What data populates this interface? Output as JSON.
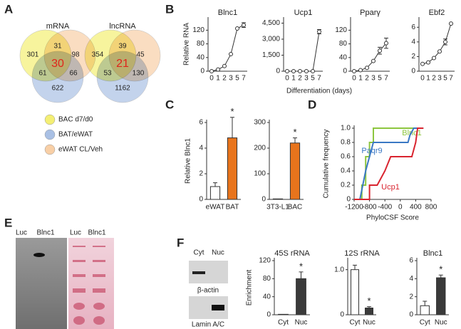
{
  "panel_labels": [
    "A",
    "B",
    "C",
    "D",
    "E",
    "F"
  ],
  "venn": [
    {
      "title": "mRNA",
      "regions": [
        301,
        31,
        98,
        61,
        30,
        66,
        622
      ]
    },
    {
      "title": "lncRNA",
      "regions": [
        354,
        39,
        45,
        53,
        21,
        130,
        1162
      ]
    }
  ],
  "venn_legend": [
    {
      "label": "BAC d7/d0",
      "color": "#f4ef74"
    },
    {
      "label": "BAT/eWAT",
      "color": "#a9c0e4"
    },
    {
      "label": "eWAT CL/Veh",
      "color": "#f8cfa6"
    }
  ],
  "venn_center_color": "#e0241b",
  "blot_e": {
    "labels": [
      "Luc",
      "Blnc1",
      "Luc",
      "Blnc1"
    ]
  },
  "blot_f": {
    "lanes": [
      "Cyt",
      "Nuc"
    ],
    "proteins": [
      "β-actin",
      "Lamin A/C"
    ]
  },
  "chart_data": [
    {
      "type": "line",
      "title": "Blnc1",
      "ylabel": "Relative RNA",
      "xlabel": "Differentiation (days)",
      "categories": [
        "0",
        "1",
        "2",
        "3",
        "5",
        "7"
      ],
      "series": [
        {
          "name": "Blnc1",
          "color": "#333333",
          "values": [
            0,
            5,
            15,
            50,
            125,
            135
          ],
          "errors": [
            null,
            null,
            null,
            null,
            null,
            7
          ]
        }
      ],
      "ylim": [
        0,
        150
      ],
      "yticks": [
        0,
        40,
        80,
        120
      ]
    },
    {
      "type": "line",
      "title": "Ucp1",
      "categories": [
        "0",
        "1",
        "2",
        "3",
        "5",
        "7"
      ],
      "series": [
        {
          "name": "Ucp1",
          "color": "#333333",
          "values": [
            0,
            0,
            0,
            0,
            0,
            3700
          ],
          "errors": [
            null,
            null,
            null,
            null,
            null,
            200
          ]
        }
      ],
      "ylim": [
        0,
        4800
      ],
      "yticks": [
        0,
        {
          "value": 1500,
          "label": "1,500"
        },
        {
          "value": 3000,
          "label": "3,000"
        },
        {
          "value": 4500,
          "label": "4,500"
        }
      ]
    },
    {
      "type": "line",
      "title": "Pparγ",
      "categories": [
        "0",
        "1",
        "2",
        "3",
        "5",
        "7"
      ],
      "series": [
        {
          "name": "Pparγ",
          "color": "#333333",
          "values": [
            0,
            3,
            10,
            30,
            60,
            82
          ],
          "errors": [
            null,
            null,
            null,
            null,
            10,
            15
          ]
        }
      ],
      "ylim": [
        0,
        150
      ],
      "yticks": [
        0,
        40,
        80,
        120
      ]
    },
    {
      "type": "line",
      "title": "Ebf2",
      "categories": [
        "0",
        "1",
        "2",
        "3",
        "5",
        "7"
      ],
      "series": [
        {
          "name": "Ebf2",
          "color": "#333333",
          "values": [
            1,
            1.2,
            1.8,
            2.7,
            4,
            6.5
          ],
          "errors": [
            null,
            null,
            null,
            null,
            0.4,
            null
          ]
        }
      ],
      "ylim": [
        0,
        7
      ],
      "yticks": [
        0,
        2,
        4,
        6
      ]
    },
    {
      "type": "bar",
      "ylabel": "Relative Blnc1",
      "categories": [
        "eWAT",
        "BAT"
      ],
      "values": [
        1,
        4.8
      ],
      "errors": [
        0.3,
        1.6
      ],
      "colors": [
        "#ffffff",
        "#e8741c"
      ],
      "annotations": [
        null,
        "*"
      ],
      "ylim": [
        0,
        6
      ],
      "yticks": [
        0,
        2,
        4,
        6
      ]
    },
    {
      "type": "bar",
      "categories": [
        "3T3-L1",
        "BAC"
      ],
      "values": [
        2,
        220
      ],
      "errors": [
        null,
        20
      ],
      "colors": [
        "#ffffff",
        "#e8741c"
      ],
      "annotations": [
        null,
        "*"
      ],
      "ylim": [
        0,
        300
      ],
      "yticks": [
        0,
        100,
        200,
        300
      ]
    },
    {
      "type": "line",
      "ylabel": "Cumulative frequency",
      "xlabel": "PhyloCSF Score",
      "series": [
        {
          "name": "Blnc1",
          "color": "#8dc63f",
          "x": [
            -1200,
            -1000,
            -1000,
            -900,
            -900,
            -800,
            -800,
            -700,
            -700,
            600
          ],
          "values": [
            0,
            0,
            0.2,
            0.2,
            0.6,
            0.6,
            0.8,
            0.8,
            1,
            1
          ]
        },
        {
          "name": "Paqr9",
          "color": "#3a78c4",
          "x": [
            -1200,
            -1050,
            -900,
            -800,
            -700,
            200,
            250,
            350,
            400,
            600
          ],
          "values": [
            0,
            0,
            0.4,
            0.6,
            0.8,
            0.8,
            0.9,
            1,
            1,
            1
          ]
        },
        {
          "name": "Ucp1",
          "color": "#d9242f",
          "x": [
            -1200,
            -800,
            -800,
            -600,
            -400,
            -250,
            -200,
            300,
            400,
            450,
            600
          ],
          "values": [
            0,
            0,
            0.2,
            0.2,
            0.4,
            0.6,
            0.6,
            0.6,
            0.8,
            1,
            1
          ]
        }
      ],
      "xlim": [
        -1200,
        800
      ],
      "xticks": [
        -1200,
        -800,
        -400,
        0,
        400,
        800
      ],
      "ylim": [
        0,
        1
      ],
      "yticks": [
        0,
        0.2,
        0.4,
        0.6,
        0.8,
        {
          "value": 1,
          "label": "1.0"
        }
      ]
    },
    {
      "type": "bar",
      "title": "45S rRNA",
      "ylabel": "Enrichment",
      "categories": [
        "Cyt",
        "Nuc"
      ],
      "values": [
        1,
        80
      ],
      "errors": [
        null,
        15
      ],
      "colors": [
        "#ffffff",
        "#3a3a3a"
      ],
      "annotations": [
        null,
        "*"
      ],
      "ylim": [
        0,
        120
      ],
      "yticks": [
        0,
        40,
        80,
        120
      ]
    },
    {
      "type": "bar",
      "title": "12S rRNA",
      "categories": [
        "Cyt",
        "Nuc"
      ],
      "values": [
        1,
        0.15
      ],
      "errors": [
        0.1,
        0.03
      ],
      "colors": [
        "#ffffff",
        "#3a3a3a"
      ],
      "annotations": [
        null,
        "*"
      ],
      "ylim": [
        0,
        1.2
      ],
      "yticks": [
        0,
        {
          "value": 1,
          "label": "1.0"
        }
      ]
    },
    {
      "type": "bar",
      "title": "Blnc1",
      "categories": [
        "Cyt",
        "Nuc"
      ],
      "values": [
        1,
        4.1
      ],
      "errors": [
        0.5,
        0.3
      ],
      "colors": [
        "#ffffff",
        "#3a3a3a"
      ],
      "annotations": [
        null,
        "*"
      ],
      "ylim": [
        0,
        6
      ],
      "yticks": [
        0,
        2,
        4,
        6
      ]
    }
  ]
}
